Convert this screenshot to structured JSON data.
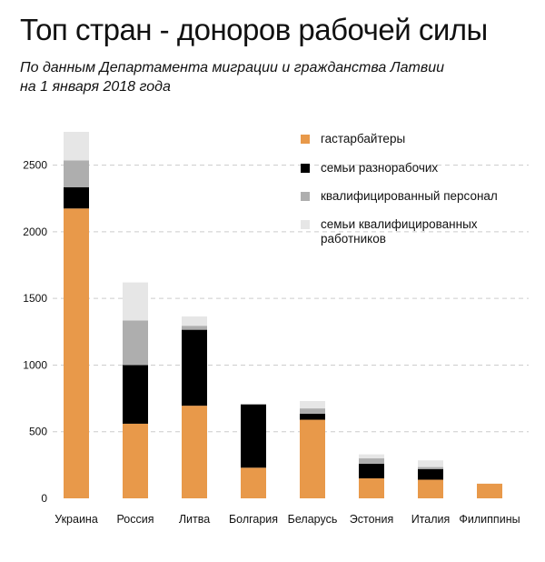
{
  "chart_data": {
    "type": "bar",
    "stacked": true,
    "title": "Топ стран - доноров рабочей силы",
    "subtitle_lines": [
      "По данным Департамента миграции и гражданства Латвии",
      "на 1 января 2018 года"
    ],
    "categories": [
      "Украина",
      "Россия",
      "Литва",
      "Болгария",
      "Беларусь",
      "Эстония",
      "Италия",
      "Филиппины"
    ],
    "series": [
      {
        "name": "гастарбайтеры",
        "color": "#E8994A",
        "values": [
          2175,
          560,
          695,
          230,
          590,
          150,
          140,
          110
        ]
      },
      {
        "name": "семьи разнорабочих",
        "color": "#000000",
        "values": [
          160,
          440,
          570,
          475,
          45,
          110,
          80,
          0
        ]
      },
      {
        "name": "квалифицированный персонал",
        "color": "#AEAEAE",
        "values": [
          200,
          335,
          30,
          0,
          40,
          40,
          15,
          0
        ]
      },
      {
        "name": "семьи квалифицированных работников",
        "color": "#E6E6E6",
        "values": [
          215,
          285,
          70,
          0,
          55,
          30,
          50,
          0
        ]
      }
    ],
    "legend_lines": [
      [
        "гастарбайтеры"
      ],
      [
        "семьи разнорабочих"
      ],
      [
        "квалифицированный персонал"
      ],
      [
        "семьи квалифицированных",
        "работников"
      ]
    ],
    "yticks": [
      0,
      500,
      1000,
      1500,
      2000,
      2500
    ],
    "ylim": [
      0,
      2750
    ],
    "grid": true,
    "xlabel": "",
    "ylabel": "",
    "legend_position": "top-right"
  }
}
